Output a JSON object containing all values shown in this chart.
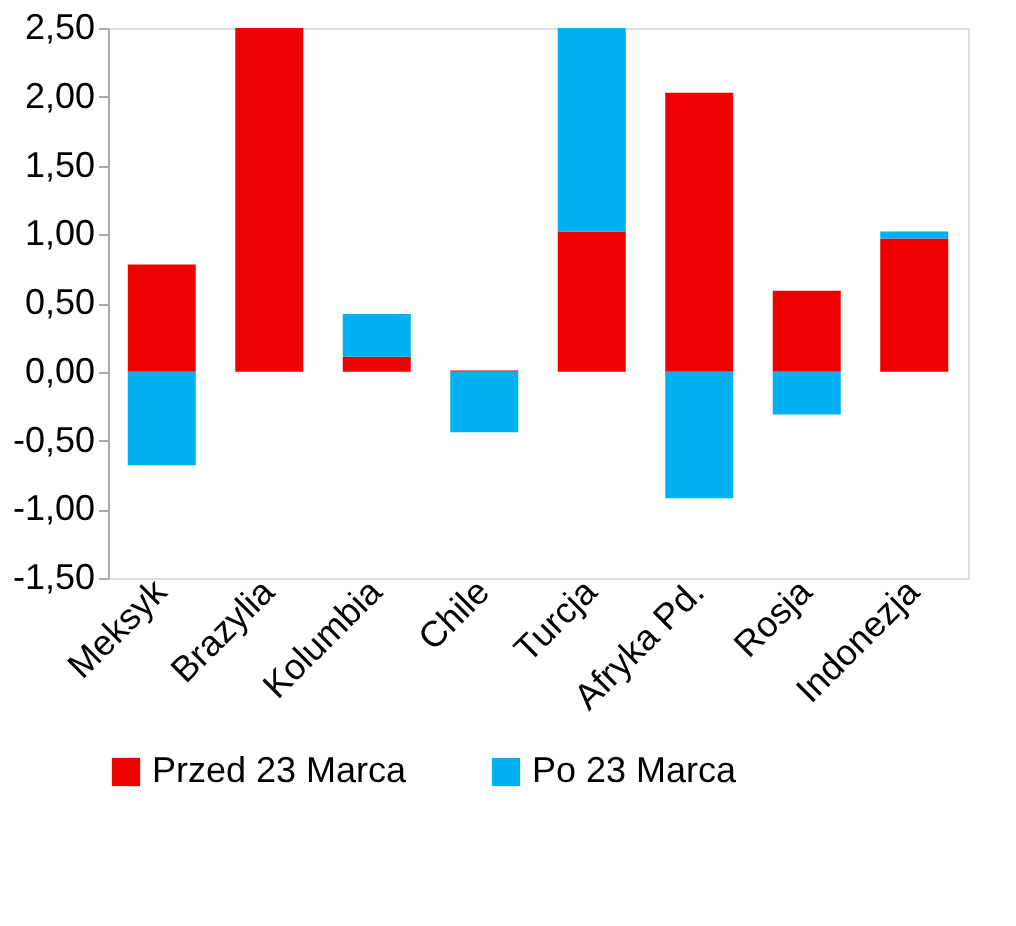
{
  "chart_data": {
    "type": "bar",
    "stacked": true,
    "categories": [
      "Meksyk",
      "Brazylia",
      "Kolumbia",
      "Chile",
      "Turcja",
      "Afryka Pd.",
      "Rosja",
      "Indonezja"
    ],
    "series": [
      {
        "name": "Przed 23 Marca",
        "color": "#ee0000",
        "values": [
          0.78,
          2.5,
          0.11,
          0.01,
          1.02,
          2.03,
          0.59,
          0.97
        ]
      },
      {
        "name": "Po 23 Marca",
        "color": "#00b0f0",
        "values": [
          -0.68,
          null,
          0.31,
          -0.44,
          1.48,
          -0.92,
          -0.31,
          0.05
        ]
      }
    ],
    "ylim": [
      -1.5,
      2.5
    ],
    "yticks": [
      {
        "value": -1.5,
        "label": "-1,50"
      },
      {
        "value": -1.0,
        "label": "-1,00"
      },
      {
        "value": -0.5,
        "label": "-0,50"
      },
      {
        "value": 0,
        "label": "0,00"
      },
      {
        "value": 0.5,
        "label": "0,50"
      },
      {
        "value": 1.0,
        "label": "1,00"
      },
      {
        "value": 1.5,
        "label": "1,50"
      },
      {
        "value": 2.0,
        "label": "2,00"
      },
      {
        "value": 2.5,
        "label": "2,50"
      }
    ],
    "grid": false,
    "legend": "bottom"
  }
}
